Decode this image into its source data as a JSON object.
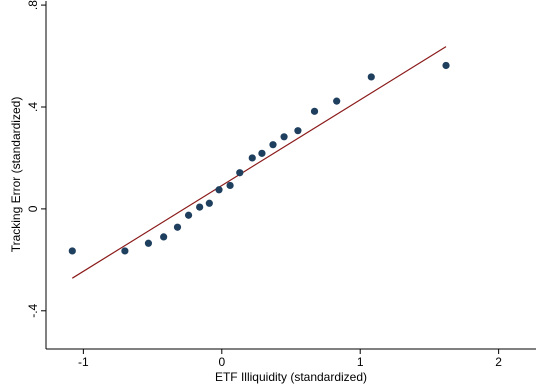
{
  "chart_data": {
    "type": "scatter",
    "title": "",
    "xlabel": "ETF Illiquidity (standardized)",
    "ylabel": "Tracking Error (standardized)",
    "xlim": [
      -1.27,
      2.27
    ],
    "ylim": [
      -0.55,
      0.82
    ],
    "xticks": [
      -1,
      0,
      1,
      2
    ],
    "xtick_labels": [
      "-1",
      "0",
      "1",
      "2"
    ],
    "yticks": [
      -0.4,
      0,
      0.4,
      0.8
    ],
    "ytick_labels": [
      "-.4",
      "0",
      ".4",
      ".8"
    ],
    "grid": false,
    "legend": false,
    "colors": {
      "points": "#1f3f5f",
      "fit_line": "#8b1a1a",
      "axis": "#000000"
    },
    "series": [
      {
        "points": [
          {
            "x": -1.08,
            "y": -0.165
          },
          {
            "x": -0.7,
            "y": -0.165
          },
          {
            "x": -0.53,
            "y": -0.135
          },
          {
            "x": -0.42,
            "y": -0.11
          },
          {
            "x": -0.32,
            "y": -0.072
          },
          {
            "x": -0.24,
            "y": -0.025
          },
          {
            "x": -0.16,
            "y": 0.007
          },
          {
            "x": -0.09,
            "y": 0.022
          },
          {
            "x": -0.02,
            "y": 0.075
          },
          {
            "x": 0.06,
            "y": 0.092
          },
          {
            "x": 0.13,
            "y": 0.142
          },
          {
            "x": 0.22,
            "y": 0.2
          },
          {
            "x": 0.29,
            "y": 0.218
          },
          {
            "x": 0.37,
            "y": 0.252
          },
          {
            "x": 0.45,
            "y": 0.283
          },
          {
            "x": 0.55,
            "y": 0.307
          },
          {
            "x": 0.67,
            "y": 0.383
          },
          {
            "x": 0.83,
            "y": 0.423
          },
          {
            "x": 1.08,
            "y": 0.518
          },
          {
            "x": 1.62,
            "y": 0.563
          }
        ]
      }
    ],
    "fit_line": {
      "x": [
        -1.08,
        1.62
      ],
      "y": [
        -0.272,
        0.637
      ]
    }
  }
}
